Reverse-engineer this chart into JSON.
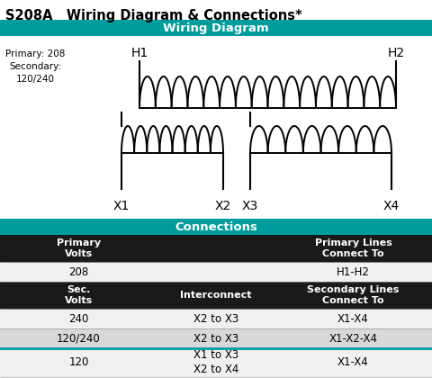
{
  "title": "S208A   Wiring Diagram & Connections*",
  "wiring_header": "Wiring Diagram",
  "connections_header": "Connections",
  "primary_info": "Primary: 208\nSecondary:\n120/240",
  "teal_color": "#009B9B",
  "dark_color": "#1a1a1a",
  "white_color": "#ffffff",
  "light_gray": "#f0f0f0",
  "mid_gray": "#d8d8d8",
  "primary_rows": [
    [
      "208",
      "",
      "H1-H2"
    ]
  ],
  "secondary_rows": [
    [
      "240",
      "X2 to X3",
      "X1-X4"
    ],
    [
      "120/240",
      "X2 to X3",
      "X1-X2-X4"
    ],
    [
      "120",
      "X1 to X3\nX2 to X4",
      "X1-X4"
    ]
  ]
}
